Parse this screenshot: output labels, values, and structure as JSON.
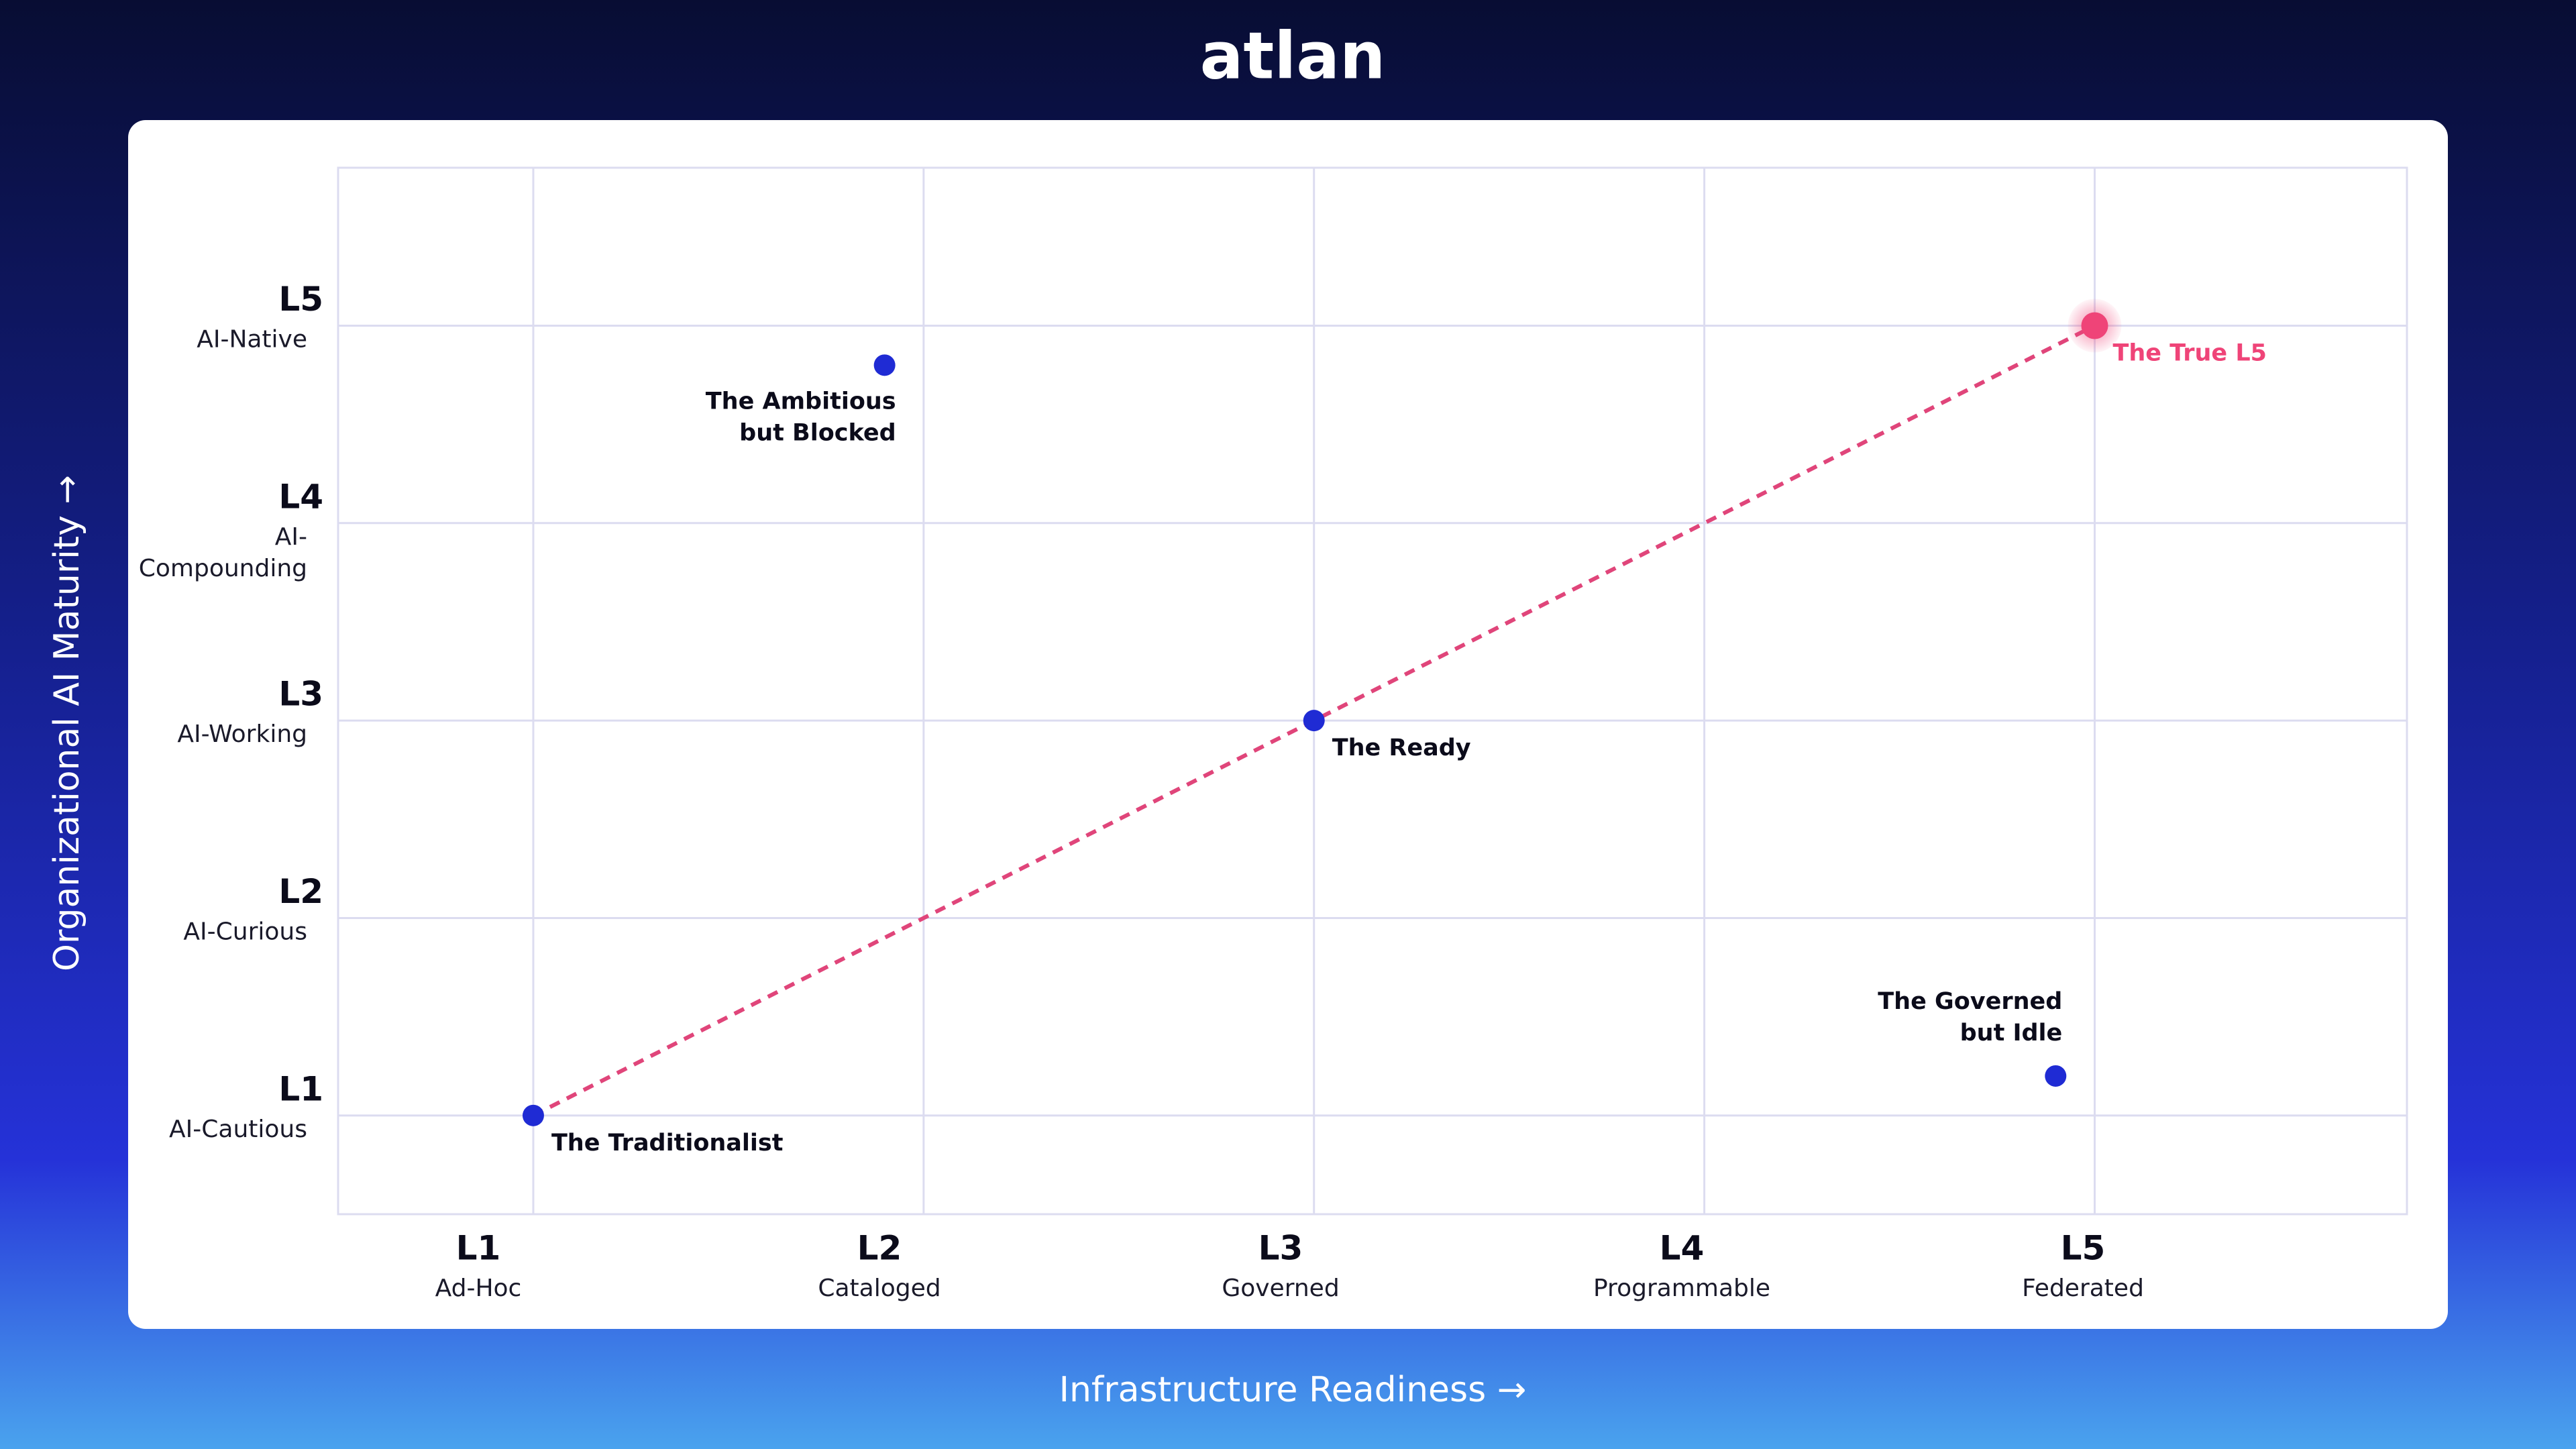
{
  "brand": "atlan",
  "chart_data": {
    "type": "scatter",
    "x_label": "Infrastructure Readiness →",
    "y_label": "Organizational AI Maturity →",
    "xlim": [
      0.5,
      5.8
    ],
    "ylim": [
      0.5,
      5.8
    ],
    "xticks": [
      {
        "value": 1,
        "label": "L1"
      },
      {
        "value": 2,
        "label": "L2"
      },
      {
        "value": 3,
        "label": "L3"
      },
      {
        "value": 4,
        "label": "L4"
      },
      {
        "value": 5,
        "label": "L5"
      }
    ],
    "xtick_sublabels": [
      "Ad-Hoc",
      "Cataloged",
      "Governed",
      "Programmable",
      "Federated"
    ],
    "yticks": [
      {
        "value": 1,
        "label": "L1"
      },
      {
        "value": 2,
        "label": "L2"
      },
      {
        "value": 3,
        "label": "L3"
      },
      {
        "value": 4,
        "label": "L4"
      },
      {
        "value": 5,
        "label": "L5"
      }
    ],
    "ytick_sublabels": [
      [
        "AI-Cautious"
      ],
      [
        "AI-Curious"
      ],
      [
        "AI-Working"
      ],
      [
        "AI-",
        "Compounding"
      ],
      [
        "AI-Native"
      ]
    ],
    "grid": true,
    "points": [
      {
        "label": [
          "The Traditionalist"
        ],
        "x": 1,
        "y": 1,
        "color": "#1f2bd4",
        "label_position": "below-right"
      },
      {
        "label": [
          "The Ambitious",
          "but Blocked"
        ],
        "x": 1.9,
        "y": 4.8,
        "color": "#1f2bd4",
        "label_position": "below-left"
      },
      {
        "label": [
          "The Ready"
        ],
        "x": 3,
        "y": 3,
        "color": "#1f2bd4",
        "label_position": "below-right"
      },
      {
        "label": [
          "The True L5"
        ],
        "x": 5,
        "y": 5,
        "color": "#ef4478",
        "label_position": "below-right",
        "highlight": true
      },
      {
        "label": [
          "The Governed",
          "but Idle"
        ],
        "x": 4.9,
        "y": 1.2,
        "color": "#1f2bd4",
        "label_position": "above-left"
      }
    ],
    "trend": {
      "x": [
        1,
        5
      ],
      "y": [
        1,
        5
      ],
      "color": "#e0457a",
      "style": "dashed"
    }
  }
}
